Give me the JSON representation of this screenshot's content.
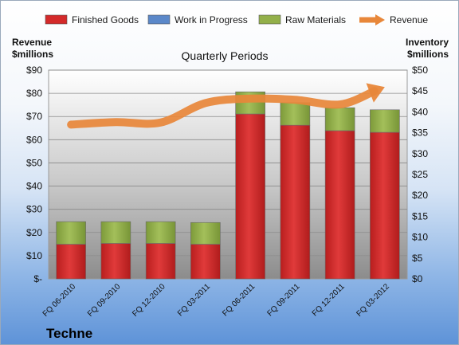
{
  "chart_data": {
    "type": "bar",
    "subtitle": "Quarterly Periods",
    "company": "Techne",
    "categories": [
      "FQ 06-2010",
      "FQ 09-2010",
      "FQ 12-2010",
      "FQ 03-2011",
      "FQ 06-2011",
      "FQ 09-2011",
      "FQ 12-2011",
      "FQ 03-2012"
    ],
    "y_left": {
      "label_line1": "Revenue",
      "label_line2": "$millions",
      "range": [
        0,
        90
      ],
      "ticks": [
        "$-",
        "$10",
        "$20",
        "$30",
        "$40",
        "$50",
        "$60",
        "$70",
        "$80",
        "$90"
      ]
    },
    "y_right": {
      "label_line1": "Inventory",
      "label_line2": "$millions",
      "range": [
        0,
        50
      ],
      "ticks": [
        "$0",
        "$5",
        "$10",
        "$15",
        "$20",
        "$25",
        "$30",
        "$35",
        "$40",
        "$45",
        "$50"
      ]
    },
    "series": [
      {
        "name": "Finished Goods",
        "axis": "right",
        "stacked": true,
        "color": "#d42a2a",
        "values": [
          8.3,
          8.5,
          8.5,
          8.3,
          39.5,
          36.8,
          35.5,
          35.1
        ]
      },
      {
        "name": "Work in Progress",
        "axis": "right",
        "stacked": true,
        "color": "#5b88c9",
        "values": [
          0,
          0,
          0,
          0,
          0,
          0,
          0,
          0
        ]
      },
      {
        "name": "Raw Materials",
        "axis": "right",
        "stacked": true,
        "color": "#93b04a",
        "values": [
          5.4,
          5.2,
          5.2,
          5.2,
          5.3,
          5.4,
          5.5,
          5.4
        ]
      },
      {
        "name": "Revenue",
        "axis": "left",
        "type": "line",
        "color": "#e8873a",
        "values": [
          66.5,
          67.6,
          67.4,
          75.8,
          77.7,
          77.2,
          75.2,
          82.7
        ]
      }
    ],
    "legend_position": "top",
    "grid": true
  }
}
